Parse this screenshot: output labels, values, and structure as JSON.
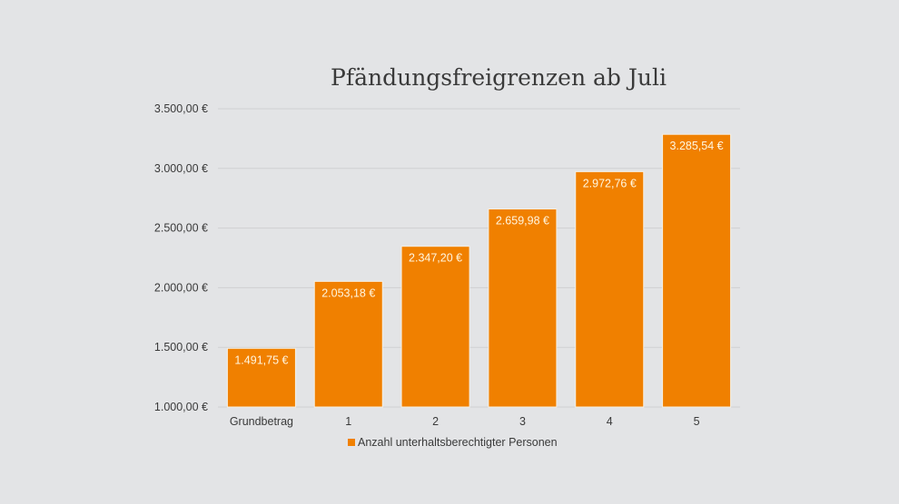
{
  "chart_data": {
    "type": "bar",
    "title": "Pfändungsfreigrenzen ab Juli",
    "categories": [
      "Grundbetrag",
      "1",
      "2",
      "3",
      "4",
      "5"
    ],
    "series": [
      {
        "name": "Anzahl unterhaltsberechtigter Personen",
        "values": [
          1491.75,
          2053.18,
          2347.2,
          2659.98,
          2972.76,
          3285.54
        ],
        "labels": [
          "1.491,75 €",
          "2.053,18 €",
          "2.347,20 €",
          "2.659,98 €",
          "2.972,76 €",
          "3.285,54 €"
        ],
        "color": "#f08000"
      }
    ],
    "ylim": [
      1000,
      3500
    ],
    "yticks": [
      1000,
      1500,
      2000,
      2500,
      3000,
      3500
    ],
    "ytick_labels": [
      "1.000,00 €",
      "1.500,00 €",
      "2.000,00 €",
      "2.500,00 €",
      "3.000,00 €",
      "3.500,00 €"
    ],
    "xlabel": "",
    "ylabel": "",
    "grid": true,
    "legend_position": "bottom"
  }
}
